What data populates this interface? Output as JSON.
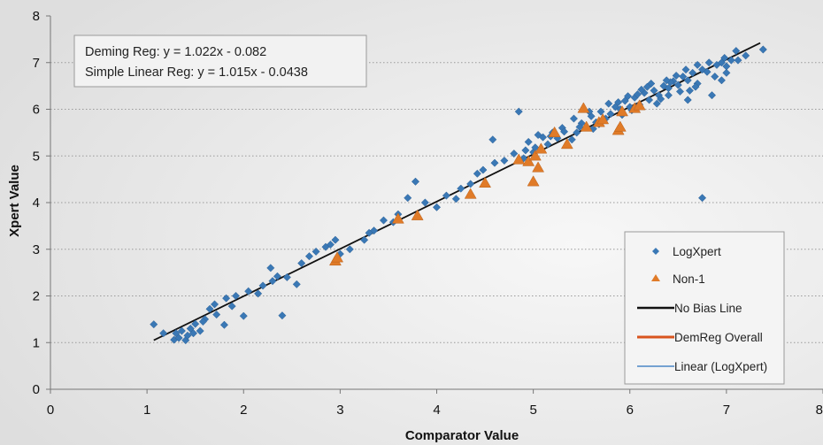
{
  "chart_data": {
    "type": "scatter",
    "xlabel": "Comparator Value",
    "ylabel": "Xpert Value",
    "xlim": [
      0,
      8
    ],
    "ylim": [
      0,
      8
    ],
    "x_ticks": [
      "0",
      "1",
      "2",
      "3",
      "4",
      "5",
      "6",
      "7",
      "8"
    ],
    "y_ticks": [
      "0",
      "1",
      "2",
      "3",
      "4",
      "5",
      "6",
      "7",
      "8"
    ],
    "grid": "horizontal-dotted",
    "legend_position": "bottom-right",
    "colors": {
      "logxpert": "#3a78b5",
      "non1": "#e07b28",
      "no_bias": "#111111",
      "demreg": "#d9541e",
      "linear": "#4a86c5"
    },
    "annotation": {
      "lines": [
        "Deming Reg: y = 1.022x - 0.082",
        "Simple Linear Reg: y = 1.015x - 0.0438"
      ]
    },
    "legend": [
      {
        "label": "LogXpert",
        "marker": "diamond"
      },
      {
        "label": "Non-1",
        "marker": "triangle"
      },
      {
        "label": "No Bias Line",
        "marker": "line"
      },
      {
        "label": "DemReg Overall",
        "marker": "line"
      },
      {
        "label": "Linear (LogXpert)",
        "marker": "line"
      }
    ],
    "series": [
      {
        "name": "LogXpert",
        "marker": "diamond",
        "points": [
          [
            1.07,
            1.39
          ],
          [
            1.17,
            1.2
          ],
          [
            1.28,
            1.06
          ],
          [
            1.3,
            1.2
          ],
          [
            1.33,
            1.1
          ],
          [
            1.36,
            1.25
          ],
          [
            1.4,
            1.05
          ],
          [
            1.42,
            1.15
          ],
          [
            1.45,
            1.3
          ],
          [
            1.5,
            1.4
          ],
          [
            1.55,
            1.25
          ],
          [
            1.6,
            1.5
          ],
          [
            1.65,
            1.72
          ],
          [
            1.7,
            1.82
          ],
          [
            1.72,
            1.6
          ],
          [
            1.8,
            1.38
          ],
          [
            1.82,
            1.95
          ],
          [
            1.88,
            1.78
          ],
          [
            1.92,
            2.0
          ],
          [
            2.0,
            1.57
          ],
          [
            2.05,
            2.1
          ],
          [
            2.2,
            2.22
          ],
          [
            2.28,
            2.6
          ],
          [
            2.3,
            2.32
          ],
          [
            2.35,
            2.42
          ],
          [
            2.4,
            1.58
          ],
          [
            2.45,
            2.4
          ],
          [
            2.55,
            2.25
          ],
          [
            2.6,
            2.7
          ],
          [
            2.68,
            2.85
          ],
          [
            2.75,
            2.95
          ],
          [
            2.85,
            3.05
          ],
          [
            2.95,
            3.2
          ],
          [
            3.0,
            2.9
          ],
          [
            3.1,
            3.0
          ],
          [
            3.25,
            3.2
          ],
          [
            3.35,
            3.4
          ],
          [
            3.45,
            3.62
          ],
          [
            3.55,
            3.58
          ],
          [
            3.7,
            4.1
          ],
          [
            3.78,
            4.45
          ],
          [
            4.0,
            3.9
          ],
          [
            4.1,
            4.15
          ],
          [
            4.2,
            4.08
          ],
          [
            4.35,
            4.4
          ],
          [
            4.48,
            4.7
          ],
          [
            4.6,
            4.85
          ],
          [
            4.7,
            4.9
          ],
          [
            4.8,
            5.05
          ],
          [
            4.85,
            5.95
          ],
          [
            4.9,
            4.95
          ],
          [
            4.95,
            5.3
          ],
          [
            5.0,
            5.08
          ],
          [
            5.05,
            5.45
          ],
          [
            5.1,
            5.4
          ],
          [
            5.15,
            5.25
          ],
          [
            5.2,
            5.5
          ],
          [
            5.25,
            5.38
          ],
          [
            5.3,
            5.6
          ],
          [
            5.4,
            5.35
          ],
          [
            5.45,
            5.5
          ],
          [
            5.5,
            5.7
          ],
          [
            5.55,
            5.62
          ],
          [
            5.6,
            5.85
          ],
          [
            5.65,
            5.72
          ],
          [
            5.7,
            5.95
          ],
          [
            5.75,
            5.8
          ],
          [
            5.8,
            5.9
          ],
          [
            5.85,
            6.05
          ],
          [
            5.9,
            6.0
          ],
          [
            5.95,
            6.18
          ],
          [
            6.0,
            6.05
          ],
          [
            6.05,
            6.25
          ],
          [
            6.1,
            6.1
          ],
          [
            6.15,
            6.35
          ],
          [
            6.2,
            6.2
          ],
          [
            6.25,
            6.4
          ],
          [
            6.3,
            6.3
          ],
          [
            6.35,
            6.5
          ],
          [
            6.4,
            6.45
          ],
          [
            6.45,
            6.6
          ],
          [
            6.5,
            6.52
          ],
          [
            6.55,
            6.7
          ],
          [
            6.6,
            6.62
          ],
          [
            6.65,
            6.78
          ],
          [
            6.7,
            6.55
          ],
          [
            6.75,
            6.85
          ],
          [
            6.75,
            4.1
          ],
          [
            6.8,
            6.8
          ],
          [
            6.85,
            6.3
          ],
          [
            6.9,
            6.95
          ],
          [
            6.95,
            7.0
          ],
          [
            7.0,
            6.92
          ],
          [
            7.05,
            7.05
          ],
          [
            7.1,
            7.25
          ],
          [
            7.2,
            7.15
          ],
          [
            7.38,
            7.28
          ],
          [
            6.6,
            6.2
          ],
          [
            6.42,
            6.58
          ],
          [
            6.28,
            6.12
          ],
          [
            6.12,
            6.42
          ],
          [
            5.98,
            6.28
          ],
          [
            5.88,
            6.15
          ],
          [
            5.72,
            5.75
          ],
          [
            5.62,
            5.58
          ],
          [
            5.48,
            5.62
          ],
          [
            5.32,
            5.52
          ],
          [
            5.18,
            5.42
          ],
          [
            5.02,
            5.18
          ],
          [
            4.92,
            5.12
          ],
          [
            4.58,
            5.35
          ],
          [
            4.42,
            4.62
          ],
          [
            4.25,
            4.3
          ],
          [
            3.88,
            4.0
          ],
          [
            3.6,
            3.75
          ],
          [
            3.3,
            3.35
          ],
          [
            2.9,
            3.1
          ],
          [
            2.15,
            2.05
          ],
          [
            1.58,
            1.45
          ],
          [
            1.48,
            1.2
          ],
          [
            6.52,
            6.38
          ],
          [
            6.68,
            6.48
          ],
          [
            6.88,
            6.7
          ],
          [
            7.0,
            6.78
          ],
          [
            6.95,
            6.62
          ],
          [
            6.58,
            6.85
          ],
          [
            6.38,
            6.62
          ],
          [
            6.22,
            6.55
          ],
          [
            6.08,
            6.32
          ],
          [
            6.32,
            6.22
          ],
          [
            6.48,
            6.72
          ],
          [
            6.7,
            6.95
          ],
          [
            6.82,
            7.0
          ],
          [
            6.98,
            7.1
          ],
          [
            7.12,
            7.05
          ],
          [
            5.42,
            5.8
          ],
          [
            5.58,
            5.95
          ],
          [
            5.68,
            5.68
          ],
          [
            5.78,
            6.12
          ],
          [
            5.92,
            5.88
          ],
          [
            6.02,
            5.98
          ],
          [
            6.18,
            6.48
          ],
          [
            6.4,
            6.3
          ],
          [
            6.62,
            6.4
          ]
        ]
      },
      {
        "name": "Non-1",
        "marker": "triangle",
        "points": [
          [
            2.95,
            2.75
          ],
          [
            2.97,
            2.82
          ],
          [
            3.6,
            3.65
          ],
          [
            3.8,
            3.72
          ],
          [
            4.35,
            4.18
          ],
          [
            4.5,
            4.42
          ],
          [
            4.85,
            4.92
          ],
          [
            4.95,
            4.88
          ],
          [
            5.0,
            4.45
          ],
          [
            5.05,
            4.75
          ],
          [
            5.02,
            5.0
          ],
          [
            5.08,
            5.15
          ],
          [
            5.22,
            5.5
          ],
          [
            5.35,
            5.25
          ],
          [
            5.52,
            6.02
          ],
          [
            5.55,
            5.62
          ],
          [
            5.68,
            5.72
          ],
          [
            5.72,
            5.78
          ],
          [
            5.88,
            5.55
          ],
          [
            5.9,
            5.62
          ],
          [
            5.92,
            5.95
          ],
          [
            6.05,
            6.02
          ],
          [
            6.1,
            6.08
          ]
        ]
      }
    ],
    "fit_line": {
      "name": "No Bias Line",
      "x": [
        1.07,
        7.35
      ],
      "y": [
        1.05,
        7.42
      ]
    }
  }
}
